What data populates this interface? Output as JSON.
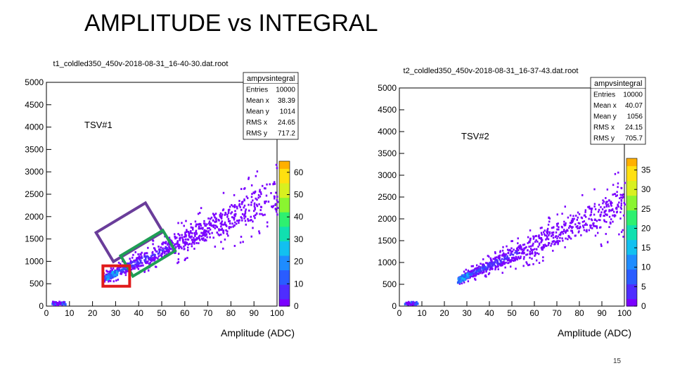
{
  "slide": {
    "title": "AMPLITUDE vs INTEGRAL",
    "page_number": "15"
  },
  "colors": {
    "accent_purple": "#6a3d9a",
    "accent_green": "#1f9e55",
    "accent_red": "#e01b1b"
  },
  "chart_data": [
    {
      "type": "heatmap",
      "title": "t1_coldled350_450v-2018-08-31_16-40-30.dat.root",
      "panel_label": "TSV#1",
      "xlabel": "Amplitude (ADC)",
      "ylabel": "",
      "xlim": [
        0,
        100
      ],
      "ylim": [
        0,
        5000
      ],
      "x_ticks": [
        "0",
        "10",
        "20",
        "30",
        "40",
        "50",
        "60",
        "70",
        "80",
        "90",
        "100"
      ],
      "y_ticks": [
        "0",
        "500",
        "1000",
        "1500",
        "2000",
        "2500",
        "3000",
        "3500",
        "4000",
        "4500",
        "5000"
      ],
      "colorbar": {
        "min": 0,
        "max": 65,
        "ticks": [
          "0",
          "10",
          "20",
          "30",
          "40",
          "50",
          "60"
        ]
      },
      "stats": {
        "name": "ampvsintegral",
        "rows": [
          {
            "label": "Entries",
            "value": "10000"
          },
          {
            "label": "Mean x",
            "value": "38.39"
          },
          {
            "label": "Mean y",
            "value": "1014"
          },
          {
            "label": "RMS x",
            "value": "24.65"
          },
          {
            "label": "RMS y",
            "value": "717.2"
          }
        ]
      },
      "trend": {
        "slope": 24.5,
        "intercept": 40,
        "x_start": 24,
        "x_end": 100,
        "hotspot_x": 28,
        "pedestal_x": 5
      },
      "annotation_boxes": [
        {
          "color": "purple",
          "region": "upper band near x 25-45"
        },
        {
          "color": "green",
          "region": "main band near x 35-55"
        },
        {
          "color": "red",
          "region": "hot spot near x 25-32"
        }
      ]
    },
    {
      "type": "heatmap",
      "title": "t2_coldled350_450v-2018-08-31_16-37-43.dat.root",
      "panel_label": "TSV#2",
      "xlabel": "Amplitude (ADC)",
      "ylabel": "",
      "xlim": [
        0,
        100
      ],
      "ylim": [
        0,
        5000
      ],
      "x_ticks": [
        "0",
        "10",
        "20",
        "30",
        "40",
        "50",
        "60",
        "70",
        "80",
        "90",
        "100"
      ],
      "y_ticks": [
        "0",
        "500",
        "1000",
        "1500",
        "2000",
        "2500",
        "3000",
        "3500",
        "4000",
        "4500",
        "5000"
      ],
      "colorbar": {
        "min": 0,
        "max": 38,
        "ticks": [
          "0",
          "5",
          "10",
          "15",
          "20",
          "25",
          "30",
          "35"
        ]
      },
      "stats": {
        "name": "ampvsintegral",
        "rows": [
          {
            "label": "Entries",
            "value": "10000"
          },
          {
            "label": "Mean x",
            "value": "40.07"
          },
          {
            "label": "Mean y",
            "value": "1056"
          },
          {
            "label": "RMS x",
            "value": "24.15"
          },
          {
            "label": "RMS y",
            "value": "705.7"
          }
        ]
      },
      "trend": {
        "slope": 24.0,
        "intercept": 0,
        "x_start": 26,
        "x_end": 100,
        "hotspot_x": 28,
        "pedestal_x": 5
      },
      "annotation_boxes": []
    }
  ]
}
